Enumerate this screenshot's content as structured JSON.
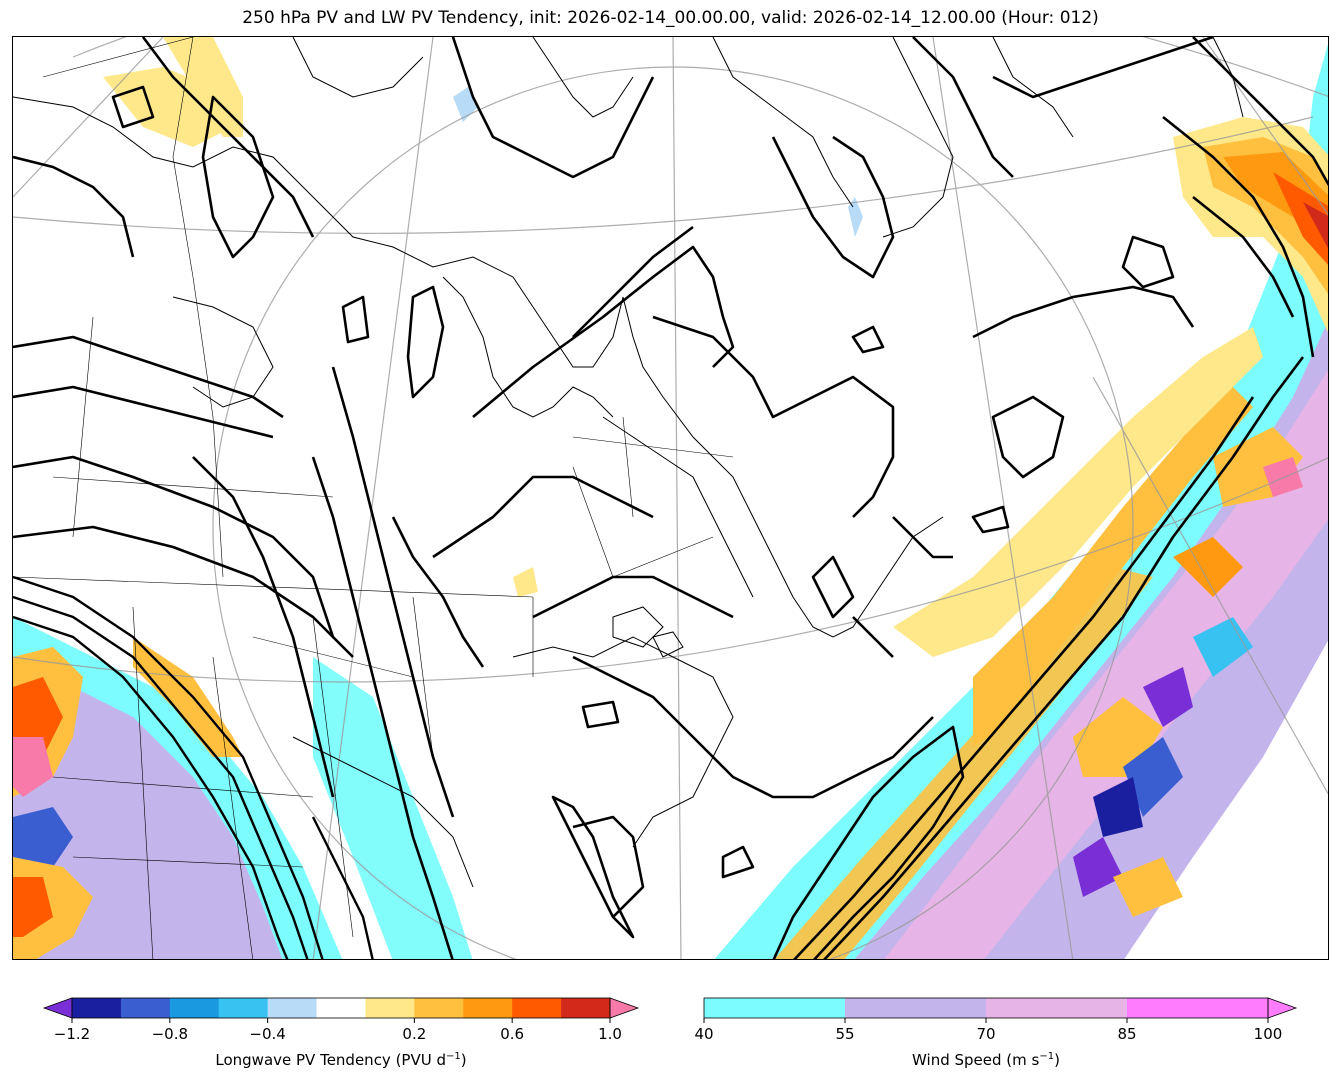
{
  "title": "250 hPa PV and LW PV Tendency, init: 2026-02-14_00.00.00, valid: 2026-02-14_12.00.00 (Hour: 012)",
  "colorbars": {
    "pv_tendency": {
      "label": "Longwave PV Tendency (PVU d",
      "label_exp": "−1",
      "label_end": ")",
      "ticks": [
        "−1.2",
        "−0.8",
        "−0.4",
        "0.2",
        "0.6",
        "1.0"
      ],
      "colors": [
        "#7a2fd6",
        "#1a1fa0",
        "#3a5ed0",
        "#1a98e0",
        "#38c2f2",
        "#b8dcf8",
        "#ffffff",
        "#ffe88a",
        "#ffc040",
        "#ff9a10",
        "#ff5a00",
        "#d22a1a",
        "#f87aa8"
      ]
    },
    "wind_speed": {
      "label": "Wind Speed (m s",
      "label_exp": "−1",
      "label_end": ")",
      "ticks": [
        "40",
        "55",
        "70",
        "85",
        "100"
      ],
      "colors": [
        "#7cfcfc",
        "#c4b4ec",
        "#e6b4e6",
        "#ff7cff"
      ]
    }
  },
  "map": {
    "features": [
      "coastlines",
      "state-borders",
      "graticule",
      "pv-contours",
      "wind-speed-fill",
      "pv-tendency-fill"
    ]
  }
}
